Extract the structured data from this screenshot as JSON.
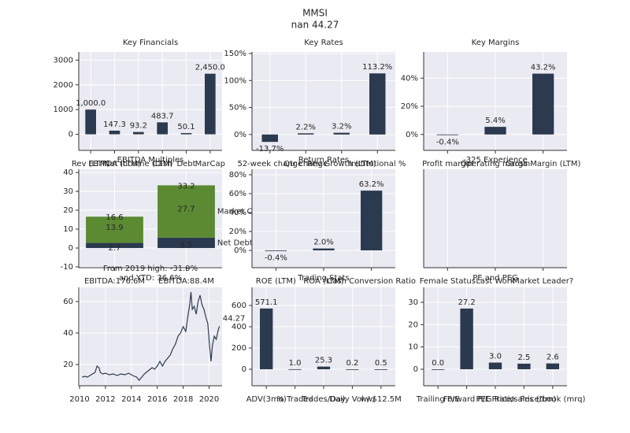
{
  "title": "MMSI",
  "subtitle": "nan 44.27",
  "chart_data": [
    {
      "type": "bar",
      "title": "Key Financials",
      "categories": [
        "Rev (LTM)",
        "EBITDA (LTM)",
        "Net Income (LTM)",
        "Cash",
        "Debt",
        "MarCap"
      ],
      "values": [
        1000.0,
        147.3,
        93.2,
        483.7,
        50.1,
        2450.0
      ],
      "value_labels": [
        "1,000.0",
        "147.3",
        "93.2",
        "483.7",
        "50.1",
        "2,450.0"
      ],
      "color": "#2b3a4e",
      "ylim": [
        -650,
        3330
      ],
      "yticks": [
        0,
        1000,
        2000,
        3000
      ],
      "grid": true
    },
    {
      "type": "bar",
      "title": "Key Rates",
      "categories": [
        "52-week change",
        "Qtr change",
        "Rev Growth (LTM)",
        "Institutional %"
      ],
      "values": [
        -13.7,
        2.2,
        3.2,
        113.2
      ],
      "value_labels": [
        "-13.7%",
        "2.2%",
        "3.2%",
        "113.2%"
      ],
      "color": "#2b3a4e",
      "ylim": [
        -29.4,
        152.9
      ],
      "yticks": [
        {
          "value": 0,
          "label": "0%"
        },
        {
          "value": 50,
          "label": "50%"
        },
        {
          "value": 100,
          "label": "100%"
        },
        {
          "value": 150,
          "label": "150%"
        }
      ],
      "grid": true
    },
    {
      "type": "bar",
      "title": "Key Margins",
      "categories": [
        "Profit margin",
        "Operating margin",
        "Gross Margin (LTM)"
      ],
      "values": [
        -0.4,
        5.4,
        43.2
      ],
      "value_labels": [
        "-0.4%",
        "5.4%",
        "43.2%"
      ],
      "color": "#2b3a4e",
      "ylim": [
        -11.3,
        58.6
      ],
      "yticks": [
        {
          "value": 0,
          "label": "0%"
        },
        {
          "value": 20,
          "label": "20%"
        },
        {
          "value": 40,
          "label": "40%"
        }
      ],
      "grid": true
    },
    {
      "type": "stacked",
      "title": "EBITDA Multiples",
      "categories": [
        "EBITDA:176.6M",
        "EBITDA:88.4M"
      ],
      "series": [
        {
          "name": "Net Debt",
          "color": "#2b3a4e",
          "values": [
            2.7,
            5.5
          ]
        },
        {
          "name": "Market Cap",
          "color": "#5b8a32",
          "values": [
            13.9,
            27.7
          ]
        }
      ],
      "totals": [
        16.6,
        33.2
      ],
      "ylim": [
        -10.4,
        41.7
      ],
      "yticks": [
        -10,
        0,
        10,
        20,
        30,
        40
      ],
      "grid": true
    },
    {
      "type": "bar",
      "title": "Return Rates",
      "categories": [
        "ROE (LTM)",
        "ROA (LTM)",
        "Cash Conversion Ratio"
      ],
      "values": [
        -0.4,
        2.0,
        63.2
      ],
      "value_labels": [
        "-0.4%",
        "2.0%",
        "63.2%"
      ],
      "color": "#2b3a4e",
      "ylim": [
        -18.3,
        85.8
      ],
      "yticks": [
        {
          "value": 0,
          "label": "0%"
        },
        {
          "value": 20,
          "label": "20%"
        },
        {
          "value": 40,
          "label": "40%"
        },
        {
          "value": 60,
          "label": "60%"
        },
        {
          "value": 80,
          "label": "80%"
        }
      ],
      "grid": true
    },
    {
      "type": "bar",
      "title": "-325 Experience",
      "categories": [
        "Female Status",
        "Last Work",
        "Market Leader?"
      ],
      "grid": true
    },
    {
      "type": "line",
      "title": "From 2019 high: -31.9%",
      "subtitle": "and YTD: 36.6%",
      "color": "#2b3a4e",
      "x": [
        2010.2,
        2010.4,
        2010.6,
        2010.8,
        2011.0,
        2011.2,
        2011.35,
        2011.5,
        2011.6,
        2011.8,
        2012.0,
        2012.3,
        2012.6,
        2012.9,
        2013.2,
        2013.5,
        2013.8,
        2014.1,
        2014.4,
        2014.6,
        2014.8,
        2015.0,
        2015.3,
        2015.6,
        2015.8,
        2016.0,
        2016.2,
        2016.4,
        2016.6,
        2016.8,
        2017.0,
        2017.2,
        2017.4,
        2017.6,
        2017.8,
        2018.0,
        2018.2,
        2018.35,
        2018.5,
        2018.6,
        2018.7,
        2018.85,
        2019.0,
        2019.15,
        2019.3,
        2019.45,
        2019.6,
        2019.75,
        2019.9,
        2020.05,
        2020.15,
        2020.25,
        2020.4,
        2020.55,
        2020.7,
        2020.8
      ],
      "values": [
        12,
        12.5,
        12,
        13,
        14,
        15,
        19,
        18,
        15,
        14,
        14.5,
        13.5,
        14,
        13,
        14,
        13.5,
        14.5,
        13,
        12,
        10,
        12,
        14,
        16,
        18,
        17,
        19,
        22,
        19,
        22,
        24,
        26,
        30,
        33,
        38,
        40,
        44,
        41,
        50,
        58,
        66,
        55,
        57,
        52,
        60,
        64,
        58,
        55,
        50,
        46,
        30,
        22,
        32,
        38,
        36,
        42,
        44.27
      ],
      "xlim": [
        2009.94,
        2021.0
      ],
      "xticks": [
        2010,
        2012,
        2014,
        2016,
        2018,
        2020
      ],
      "ylim": [
        6.5,
        69
      ],
      "yticks": [
        20,
        40,
        60
      ],
      "grid": true
    },
    {
      "type": "bar",
      "title": "Trading Stats",
      "categories": [
        "ADV(3mo)",
        "% Traded",
        "Trades/Day",
        "Daily Vol w/",
        "w/ $12.5M"
      ],
      "values": [
        571.1,
        1.0,
        25.3,
        0.2,
        0.5
      ],
      "value_labels": [
        "571.1",
        "1.0",
        "25.3",
        "0.2",
        "0.5"
      ],
      "color": "#2b3a4e",
      "ylim": [
        -155,
        770
      ],
      "yticks": [
        0,
        200,
        400,
        600
      ],
      "grid": true
    },
    {
      "type": "bar",
      "title": "PE and PEG",
      "categories": [
        "Trailing P/E",
        "Forward P/E",
        "PEG Ratio",
        "Price/sales (ttm)",
        "Price/book (mrq)"
      ],
      "values": [
        0.0,
        27.2,
        3.0,
        2.5,
        2.6
      ],
      "value_labels": [
        "0.0",
        "27.2",
        "3.0",
        "2.5",
        "2.6"
      ],
      "color": "#2b3a4e",
      "ylim": [
        -7.4,
        36.7
      ],
      "yticks": [
        0,
        10,
        20,
        30
      ],
      "grid": true
    }
  ]
}
